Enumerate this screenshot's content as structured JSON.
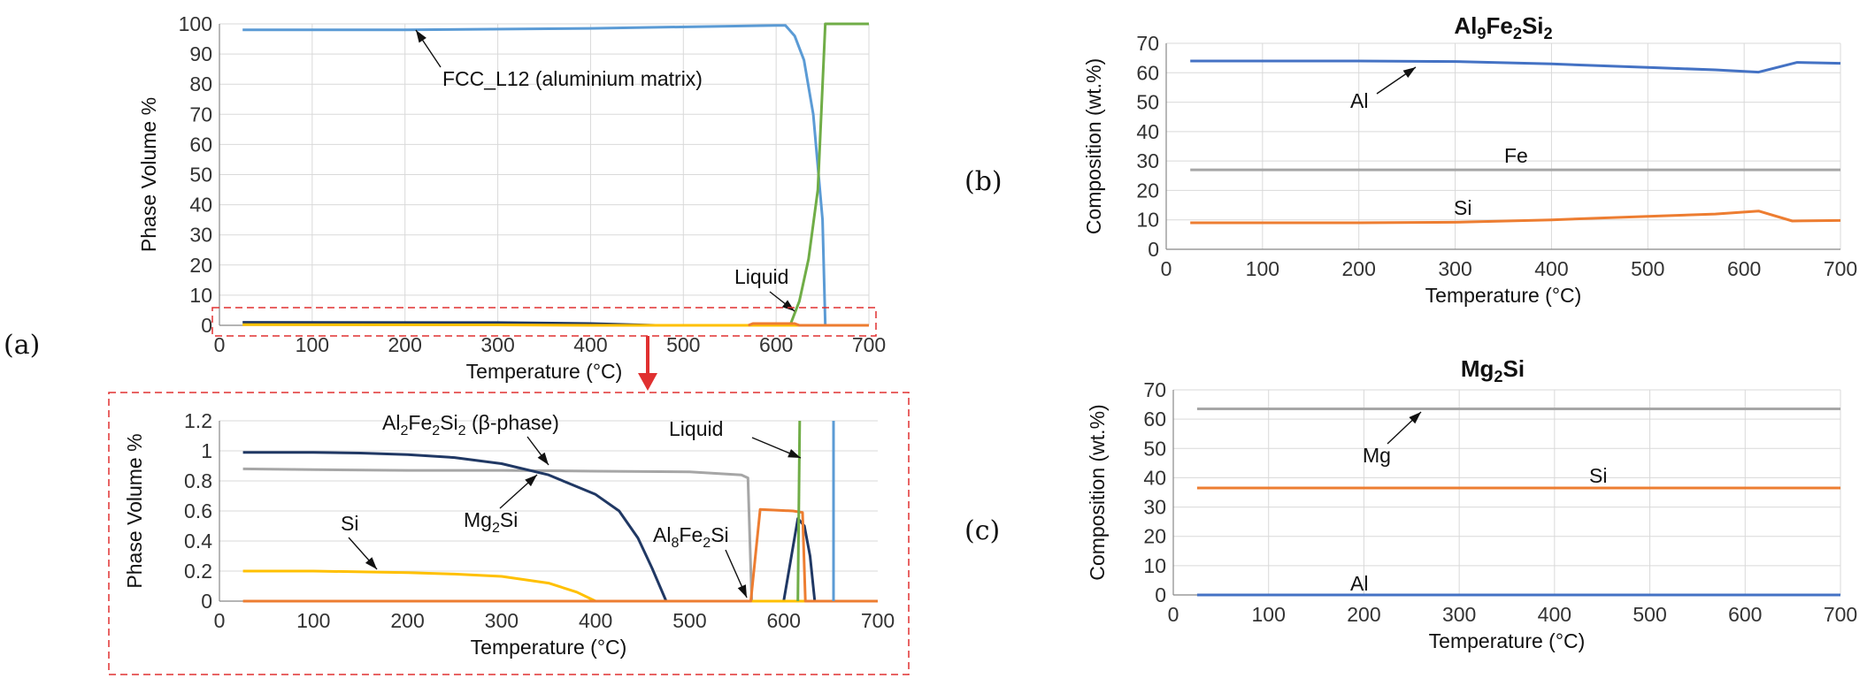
{
  "panel_labels": {
    "a": "(a)",
    "b": "(b)",
    "c": "(c)"
  },
  "colors": {
    "fcc": "#5b9bd5",
    "liquid": "#70ad47",
    "al2fe2si2": "#a6a6a6",
    "mg2si": "#203864",
    "si": "#ffc000",
    "al8fe2si": "#ed7d31",
    "al_comp": "#4472c4",
    "fe_comp": "#a6a6a6",
    "si_comp": "#ed7d31",
    "mg_comp": "#a6a6a6",
    "highlight": "#e03030"
  },
  "chart_data": [
    {
      "id": "a_top",
      "type": "line",
      "title": "",
      "xlabel": "Temperature (°C)",
      "ylabel": "Phase Volume %",
      "xlim": [
        0,
        700
      ],
      "ylim": [
        0,
        100
      ],
      "xticks": [
        "0",
        "100",
        "200",
        "300",
        "400",
        "500",
        "600",
        "700"
      ],
      "yticks": [
        "0",
        "10",
        "20",
        "30",
        "40",
        "50",
        "60",
        "70",
        "80",
        "90",
        "100"
      ],
      "series": [
        {
          "name": "FCC_L12 (aluminium matrix)",
          "color": "#5b9bd5",
          "points": [
            [
              25,
              98
            ],
            [
              200,
              98
            ],
            [
              400,
              98.5
            ],
            [
              600,
              99.5
            ],
            [
              610,
              99.5
            ],
            [
              620,
              96
            ],
            [
              630,
              88
            ],
            [
              640,
              70
            ],
            [
              650,
              35
            ],
            [
              653,
              0
            ]
          ]
        },
        {
          "name": "Liquid",
          "color": "#70ad47",
          "points": [
            [
              565,
              0
            ],
            [
              615,
              0
            ],
            [
              625,
              8
            ],
            [
              635,
              22
            ],
            [
              645,
              45
            ],
            [
              653,
              100
            ],
            [
              700,
              100
            ]
          ]
        },
        {
          "name": "Mg2Si",
          "color": "#203864",
          "points": [
            [
              25,
              1.0
            ],
            [
              300,
              0.9
            ],
            [
              400,
              0.6
            ],
            [
              470,
              0
            ],
            [
              700,
              0
            ]
          ]
        },
        {
          "name": "Si",
          "color": "#ffc000",
          "points": [
            [
              25,
              0.2
            ],
            [
              300,
              0.16
            ],
            [
              400,
              0
            ],
            [
              700,
              0
            ]
          ]
        },
        {
          "name": "Al8Fe2Si",
          "color": "#ed7d31",
          "points": [
            [
              570,
              0
            ],
            [
              575,
              0.6
            ],
            [
              620,
              0.6
            ],
            [
              625,
              0
            ],
            [
              700,
              0
            ]
          ]
        }
      ],
      "annotations": [
        {
          "text": "FCC_L12 (aluminium matrix)"
        },
        {
          "text": "Liquid"
        }
      ]
    },
    {
      "id": "a_bottom",
      "type": "line",
      "xlabel": "Temperature (°C)",
      "ylabel": "Phase Volume %",
      "xlim": [
        0,
        700
      ],
      "ylim": [
        0,
        1.2
      ],
      "xticks": [
        "0",
        "100",
        "200",
        "300",
        "400",
        "500",
        "600",
        "700"
      ],
      "yticks": [
        "0",
        "0.2",
        "0.4",
        "0.6",
        "0.8",
        "1",
        "1.2"
      ],
      "series": [
        {
          "name": "Al2Fe2Si2 (β-phase)",
          "color": "#a6a6a6",
          "points": [
            [
              25,
              0.88
            ],
            [
              100,
              0.875
            ],
            [
              200,
              0.87
            ],
            [
              300,
              0.87
            ],
            [
              400,
              0.865
            ],
            [
              500,
              0.86
            ],
            [
              555,
              0.84
            ],
            [
              562,
              0.82
            ],
            [
              566,
              0
            ],
            [
              700,
              0
            ]
          ]
        },
        {
          "name": "Mg2Si",
          "color": "#203864",
          "points": [
            [
              25,
              0.99
            ],
            [
              100,
              0.99
            ],
            [
              150,
              0.985
            ],
            [
              200,
              0.975
            ],
            [
              250,
              0.955
            ],
            [
              300,
              0.915
            ],
            [
              350,
              0.84
            ],
            [
              400,
              0.71
            ],
            [
              425,
              0.6
            ],
            [
              445,
              0.42
            ],
            [
              460,
              0.22
            ],
            [
              475,
              0
            ],
            [
              600,
              0
            ],
            [
              615,
              0.55
            ],
            [
              622,
              0.5
            ],
            [
              628,
              0.3
            ],
            [
              633,
              0
            ],
            [
              700,
              0
            ]
          ]
        },
        {
          "name": "Si",
          "color": "#ffc000",
          "points": [
            [
              25,
              0.2
            ],
            [
              100,
              0.2
            ],
            [
              200,
              0.19
            ],
            [
              250,
              0.18
            ],
            [
              300,
              0.165
            ],
            [
              350,
              0.12
            ],
            [
              380,
              0.06
            ],
            [
              400,
              0
            ],
            [
              700,
              0
            ]
          ]
        },
        {
          "name": "Al8Fe2Si",
          "color": "#ed7d31",
          "points": [
            [
              25,
              0
            ],
            [
              565,
              0
            ],
            [
              575,
              0.61
            ],
            [
              610,
              0.6
            ],
            [
              620,
              0.59
            ],
            [
              623,
              0
            ],
            [
              700,
              0
            ]
          ]
        },
        {
          "name": "Liquid",
          "color": "#70ad47",
          "points": [
            [
              615,
              0
            ],
            [
              617,
              1.2
            ]
          ]
        },
        {
          "name": "FCC_L12",
          "color": "#5b9bd5",
          "points": [
            [
              653,
              1.2
            ],
            [
              653,
              0
            ]
          ]
        }
      ],
      "annotations": [
        {
          "text": "Al2Fe2Si2 (β-phase)",
          "parts": [
            "Al",
            "2",
            "Fe",
            "2",
            "Si",
            "2",
            " (β-phase)"
          ]
        },
        {
          "text": "Liquid"
        },
        {
          "text": "Mg2Si",
          "parts": [
            "Mg",
            "2",
            "Si"
          ]
        },
        {
          "text": "Si"
        },
        {
          "text": "Al8Fe2Si",
          "parts": [
            "Al",
            "8",
            "Fe",
            "2",
            "Si"
          ]
        }
      ]
    },
    {
      "id": "b",
      "type": "line",
      "title": "Al9Fe2Si2",
      "title_parts": [
        "Al",
        "9",
        "Fe",
        "2",
        "Si",
        "2"
      ],
      "xlabel": "Temperature (°C)",
      "ylabel": "Composition (wt.%)",
      "xlim": [
        0,
        700
      ],
      "ylim": [
        0,
        70
      ],
      "xticks": [
        "0",
        "100",
        "200",
        "300",
        "400",
        "500",
        "600",
        "700"
      ],
      "yticks": [
        "0",
        "10",
        "20",
        "30",
        "40",
        "50",
        "60",
        "70"
      ],
      "series": [
        {
          "name": "Al",
          "color": "#4472c4",
          "points": [
            [
              25,
              64
            ],
            [
              200,
              64
            ],
            [
              300,
              63.8
            ],
            [
              400,
              63
            ],
            [
              500,
              61.8
            ],
            [
              570,
              61
            ],
            [
              615,
              60.2
            ],
            [
              655,
              63.5
            ],
            [
              700,
              63.2
            ]
          ]
        },
        {
          "name": "Fe",
          "color": "#a6a6a6",
          "points": [
            [
              25,
              27
            ],
            [
              700,
              27
            ]
          ]
        },
        {
          "name": "Si",
          "color": "#ed7d31",
          "points": [
            [
              25,
              9
            ],
            [
              200,
              9
            ],
            [
              300,
              9.2
            ],
            [
              400,
              10
            ],
            [
              500,
              11.2
            ],
            [
              570,
              12
            ],
            [
              615,
              13
            ],
            [
              650,
              9.6
            ],
            [
              700,
              9.8
            ]
          ]
        }
      ],
      "annotations": [
        {
          "text": "Al"
        },
        {
          "text": "Fe"
        },
        {
          "text": "Si"
        }
      ]
    },
    {
      "id": "c",
      "type": "line",
      "title": "Mg2Si",
      "title_parts": [
        "Mg",
        "2",
        "Si"
      ],
      "xlabel": "Temperature (°C)",
      "ylabel": "Composition (wt.%)",
      "xlim": [
        0,
        700
      ],
      "ylim": [
        0,
        70
      ],
      "xticks": [
        "0",
        "100",
        "200",
        "300",
        "400",
        "500",
        "600",
        "700"
      ],
      "yticks": [
        "0",
        "10",
        "20",
        "30",
        "40",
        "50",
        "60",
        "70"
      ],
      "series": [
        {
          "name": "Mg",
          "color": "#a6a6a6",
          "points": [
            [
              25,
              63.5
            ],
            [
              700,
              63.5
            ]
          ]
        },
        {
          "name": "Si",
          "color": "#ed7d31",
          "points": [
            [
              25,
              36.5
            ],
            [
              700,
              36.5
            ]
          ]
        },
        {
          "name": "Al",
          "color": "#4472c4",
          "points": [
            [
              25,
              0
            ],
            [
              700,
              0
            ]
          ]
        }
      ],
      "annotations": [
        {
          "text": "Mg"
        },
        {
          "text": "Si"
        },
        {
          "text": "Al"
        }
      ]
    }
  ]
}
